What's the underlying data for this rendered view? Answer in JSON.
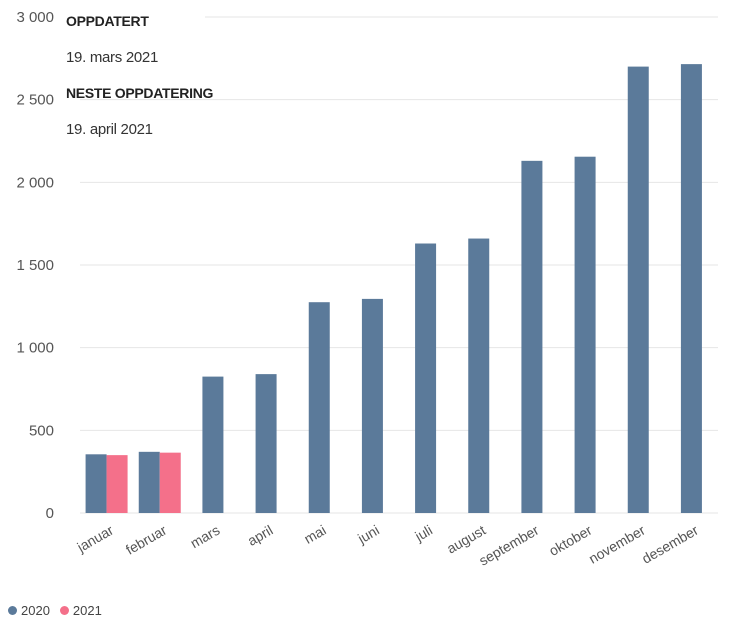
{
  "info": {
    "updated_label": "OPPDATERT",
    "updated_value": "19. mars 2021",
    "next_label": "NESTE OPPDATERING",
    "next_value": "19. april 2021"
  },
  "colors": {
    "2020": "#5b7a9a",
    "2021": "#f4708a"
  },
  "chart_data": {
    "type": "bar",
    "title": "",
    "xlabel": "",
    "ylabel": "",
    "ylim": [
      0,
      3000
    ],
    "yticks": [
      0,
      500,
      1000,
      1500,
      2000,
      2500,
      3000
    ],
    "ytick_labels": [
      "0",
      "500",
      "1 000",
      "1 500",
      "2 000",
      "2 500",
      "3 000"
    ],
    "grid": true,
    "legend_position": "bottom-left",
    "categories": [
      "januar",
      "februar",
      "mars",
      "april",
      "mai",
      "juni",
      "juli",
      "august",
      "september",
      "oktober",
      "november",
      "desember"
    ],
    "series": [
      {
        "name": "2020",
        "values": [
          355,
          370,
          825,
          840,
          1275,
          1295,
          1630,
          1660,
          2130,
          2155,
          2700,
          2715
        ]
      },
      {
        "name": "2021",
        "values": [
          350,
          365,
          null,
          null,
          null,
          null,
          null,
          null,
          null,
          null,
          null,
          null
        ]
      }
    ]
  }
}
